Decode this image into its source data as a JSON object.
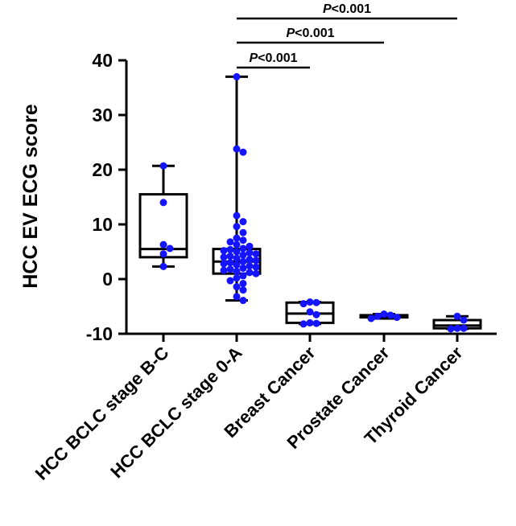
{
  "chart_data": {
    "type": "box",
    "ylabel": "HCC EV ECG score",
    "ylim": [
      -10,
      40
    ],
    "yticks": [
      -10,
      0,
      10,
      20,
      30,
      40
    ],
    "yticklabels": [
      "-10",
      "0",
      "10",
      "20",
      "30",
      "40"
    ],
    "categories": [
      "HCC BCLC stage B-C",
      "HCC BCLC stage 0-A",
      "Breast Cancer",
      "Prostate Cancer",
      "Thyroid Cancer"
    ],
    "groups": [
      {
        "name": "HCC BCLC stage B-C",
        "min": 2.3,
        "q1": 4.0,
        "median": 5.5,
        "q3": 15.5,
        "max": 20.7,
        "points": [
          20.7,
          14.0,
          6.3,
          5.6,
          4.6,
          2.3
        ]
      },
      {
        "name": "HCC BCLC stage 0-A",
        "min": -3.9,
        "q1": 1.0,
        "median": 3.2,
        "q3": 5.5,
        "max": 37.0,
        "points": [
          37.0,
          23.8,
          23.2,
          11.6,
          10.5,
          9.6,
          8.5,
          7.5,
          7.1,
          6.8,
          6.3,
          6.0,
          5.6,
          5.4,
          5.2,
          5.0,
          4.8,
          4.6,
          4.4,
          4.2,
          4.0,
          3.8,
          3.6,
          3.4,
          3.2,
          3.0,
          2.8,
          2.6,
          2.4,
          2.2,
          2.0,
          1.8,
          1.6,
          1.4,
          1.2,
          1.0,
          0.6,
          0.2,
          -0.3,
          -0.8,
          -1.4,
          -2.0,
          -3.2,
          -3.9
        ]
      },
      {
        "name": "Breast Cancer",
        "min": -8.2,
        "q1": -8.0,
        "median": -6.3,
        "q3": -4.3,
        "max": -4.2,
        "points": [
          -4.2,
          -4.3,
          -4.5,
          -6.0,
          -6.5,
          -8.0,
          -8.1,
          -8.2
        ]
      },
      {
        "name": "Prostate Cancer",
        "min": -7.2,
        "q1": -7.0,
        "median": -6.9,
        "q3": -6.6,
        "max": -6.4,
        "points": [
          -6.4,
          -6.6,
          -6.8,
          -7.0,
          -7.2
        ]
      },
      {
        "name": "Thyroid Cancer",
        "min": -9.1,
        "q1": -9.0,
        "median": -8.5,
        "q3": -7.5,
        "max": -6.8,
        "points": [
          -6.8,
          -7.5,
          -9.0,
          -9.0,
          -9.1
        ]
      }
    ],
    "significance": [
      {
        "from": "HCC BCLC stage 0-A",
        "to": "Breast Cancer",
        "label_italic": "P",
        "label": "<0.001"
      },
      {
        "from": "HCC BCLC stage 0-A",
        "to": "Prostate Cancer",
        "label_italic": "P",
        "label": "<0.001"
      },
      {
        "from": "HCC BCLC stage 0-A",
        "to": "Thyroid Cancer",
        "label_italic": "P",
        "label": "<0.001"
      }
    ]
  }
}
